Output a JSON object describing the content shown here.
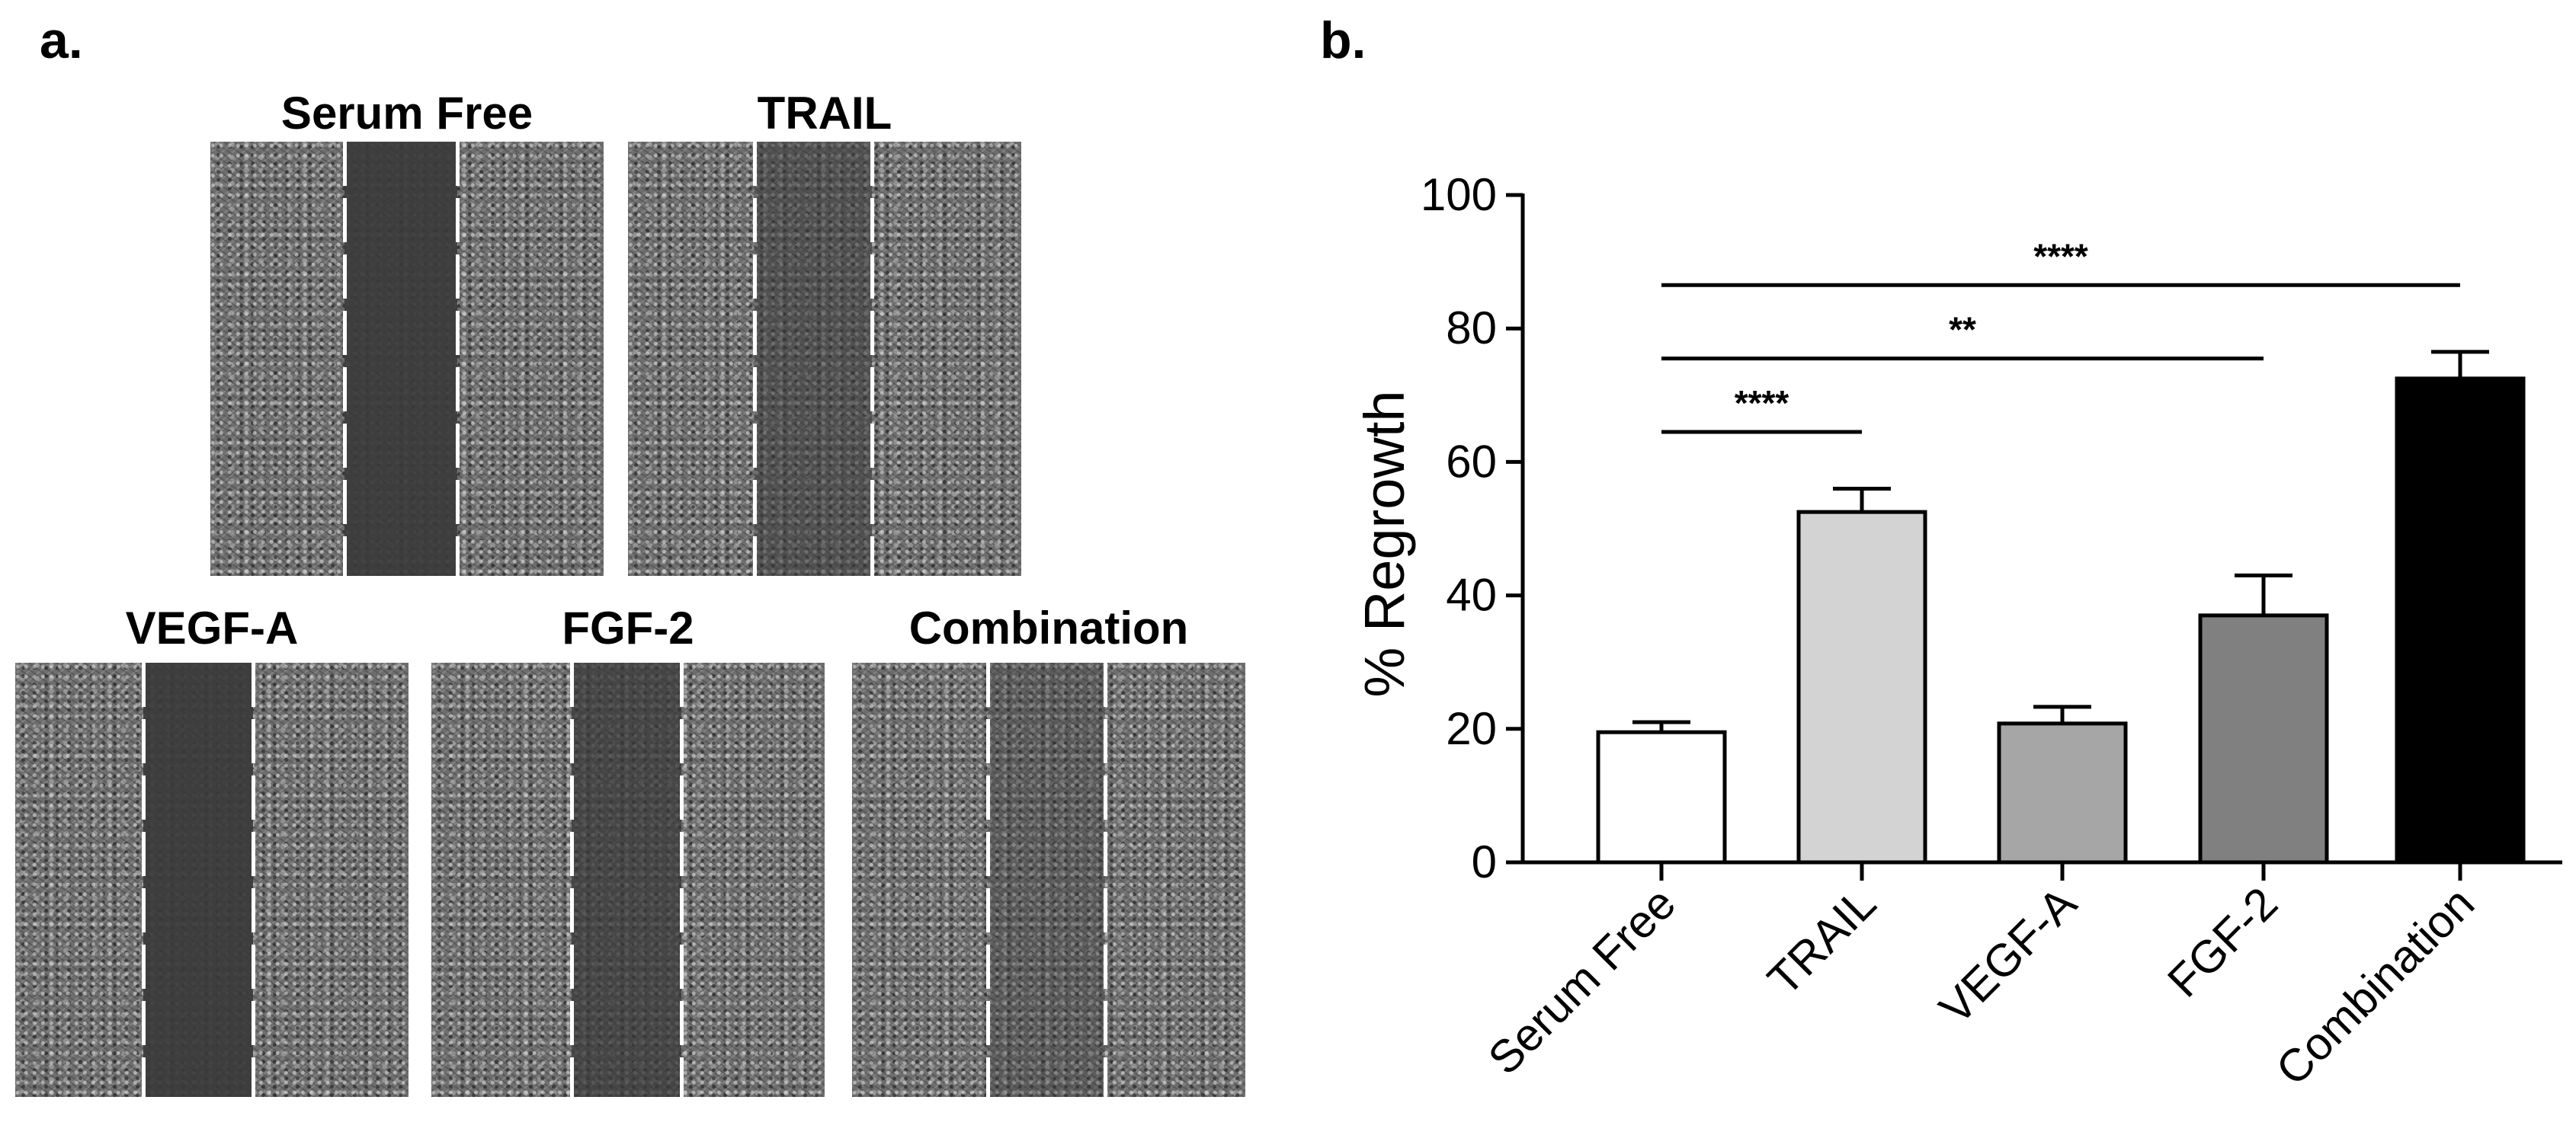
{
  "panel_a": {
    "label": "a.",
    "images": [
      {
        "title": "Serum Free"
      },
      {
        "title": "TRAIL"
      },
      {
        "title": "VEGF-A"
      },
      {
        "title": "FGF-2"
      },
      {
        "title": "Combination"
      }
    ]
  },
  "panel_b": {
    "label": "b."
  },
  "chart_data": {
    "type": "bar",
    "title": "",
    "xlabel": "",
    "ylabel": "% Regrowth",
    "ylim": [
      0,
      100
    ],
    "yticks": [
      0,
      20,
      40,
      60,
      80,
      100
    ],
    "categories": [
      "Serum Free",
      "TRAIL",
      "VEGF-A",
      "FGF-2",
      "Combination"
    ],
    "values": [
      19.5,
      52.5,
      20.8,
      37,
      72.5
    ],
    "errors": [
      1.5,
      3.5,
      2.5,
      6,
      4
    ],
    "bar_colors": [
      "#ffffff",
      "#d3d3d3",
      "#a6a6a6",
      "#808080",
      "#000000"
    ],
    "significance": [
      {
        "from": "Serum Free",
        "to": "TRAIL",
        "y": 64.5,
        "label": "****"
      },
      {
        "from": "Serum Free",
        "to": "FGF-2",
        "y": 75.5,
        "label": "**"
      },
      {
        "from": "Serum Free",
        "to": "Combination",
        "y": 86.5,
        "label": "****"
      }
    ],
    "grid": false
  }
}
